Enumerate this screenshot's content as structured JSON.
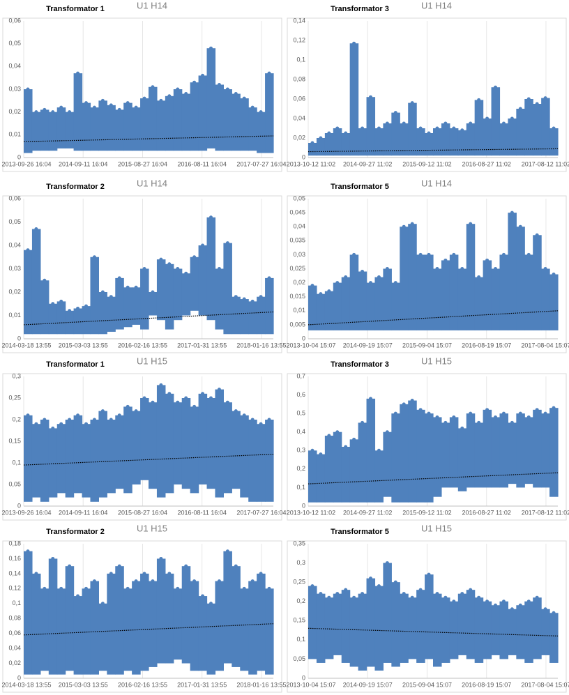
{
  "chart_data": [
    {
      "type": "band",
      "title": "Transformator 1",
      "subtitle": "U1 H14",
      "color": "#4f81bd",
      "ylim": [
        0,
        0.06
      ],
      "yticks": [
        0,
        {
          "value": 0.01,
          "label": "0,01"
        },
        {
          "value": 0.02,
          "label": "0,02"
        },
        {
          "value": 0.03,
          "label": "0,03"
        },
        {
          "value": 0.04,
          "label": "0,04"
        },
        {
          "value": 0.05,
          "label": "0,05"
        },
        {
          "value": 0.06,
          "label": "0,06"
        }
      ],
      "xticks": [
        "2013-09-26 16:04",
        "2014-09-11 16:04",
        "2015-08-27 16:04",
        "2016-08-11 16:04",
        "2017-07-27 16:04"
      ],
      "upper": [
        0.03,
        0.02,
        0.021,
        0.02,
        0.022,
        0.02,
        0.037,
        0.024,
        0.022,
        0.025,
        0.023,
        0.021,
        0.024,
        0.022,
        0.026,
        0.031,
        0.025,
        0.027,
        0.03,
        0.028,
        0.033,
        0.036,
        0.048,
        0.032,
        0.03,
        0.028,
        0.026,
        0.022,
        0.02,
        0.037
      ],
      "lower": [
        0.002,
        0.003,
        0.003,
        0.003,
        0.004,
        0.004,
        0.003,
        0.003,
        0.003,
        0.003,
        0.003,
        0.003,
        0.003,
        0.003,
        0.003,
        0.003,
        0.003,
        0.003,
        0.003,
        0.003,
        0.003,
        0.003,
        0.004,
        0.003,
        0.003,
        0.003,
        0.003,
        0.003,
        0.002,
        0.002
      ],
      "trend": [
        0.007,
        0.0095
      ]
    },
    {
      "type": "band",
      "title": "Transformator 3",
      "subtitle": "U1 H14",
      "color": "#4f81bd",
      "ylim": [
        0,
        0.14
      ],
      "yticks": [
        0,
        {
          "value": 0.02,
          "label": "0,02"
        },
        {
          "value": 0.04,
          "label": "0,04"
        },
        {
          "value": 0.06,
          "label": "0,06"
        },
        {
          "value": 0.08,
          "label": "0,08"
        },
        {
          "value": 0.1,
          "label": "0,1"
        },
        {
          "value": 0.12,
          "label": "0,12"
        },
        {
          "value": 0.14,
          "label": "0,14"
        }
      ],
      "xticks": [
        "2013-10-12 11:02",
        "2014-09-27 11:02",
        "2015-09-12 11:02",
        "2016-08-27 11:02",
        "2017-08-12 11:02"
      ],
      "upper": [
        0.015,
        0.02,
        0.025,
        0.03,
        0.025,
        0.117,
        0.03,
        0.062,
        0.03,
        0.035,
        0.046,
        0.035,
        0.056,
        0.03,
        0.025,
        0.03,
        0.035,
        0.03,
        0.028,
        0.035,
        0.059,
        0.04,
        0.072,
        0.035,
        0.04,
        0.05,
        0.06,
        0.055,
        0.061,
        0.03
      ],
      "lower": [
        0.002,
        0.002,
        0.002,
        0.002,
        0.002,
        0.002,
        0.002,
        0.002,
        0.002,
        0.002,
        0.002,
        0.002,
        0.002,
        0.002,
        0.002,
        0.002,
        0.002,
        0.002,
        0.002,
        0.002,
        0.002,
        0.002,
        0.002,
        0.002,
        0.002,
        0.002,
        0.002,
        0.002,
        0.002,
        0.002
      ],
      "trend": [
        0.006,
        0.009
      ]
    },
    {
      "type": "band",
      "title": "Transformator 2",
      "subtitle": "U1 H14",
      "color": "#4f81bd",
      "ylim": [
        0,
        0.06
      ],
      "yticks": [
        0,
        {
          "value": 0.01,
          "label": "0,01"
        },
        {
          "value": 0.02,
          "label": "0,02"
        },
        {
          "value": 0.03,
          "label": "0,03"
        },
        {
          "value": 0.04,
          "label": "0,04"
        },
        {
          "value": 0.05,
          "label": "0,05"
        },
        {
          "value": 0.06,
          "label": "0,06"
        }
      ],
      "xticks": [
        "2014-03-18 13:55",
        "2015-03-03 13:55",
        "2016-02-16 13:55",
        "2017-01-31 13:55",
        "2018-01-16 13:55"
      ],
      "upper": [
        0.038,
        0.047,
        0.025,
        0.015,
        0.016,
        0.012,
        0.013,
        0.014,
        0.035,
        0.02,
        0.018,
        0.026,
        0.022,
        0.022,
        0.03,
        0.02,
        0.034,
        0.032,
        0.03,
        0.028,
        0.035,
        0.04,
        0.052,
        0.03,
        0.041,
        0.018,
        0.017,
        0.016,
        0.018,
        0.026
      ],
      "lower": [
        0.002,
        0.002,
        0.002,
        0.002,
        0.002,
        0.002,
        0.002,
        0.002,
        0.002,
        0.002,
        0.003,
        0.004,
        0.005,
        0.006,
        0.004,
        0.01,
        0.008,
        0.004,
        0.008,
        0.01,
        0.012,
        0.01,
        0.008,
        0.004,
        0.002,
        0.002,
        0.002,
        0.002,
        0.002,
        0.002
      ],
      "trend": [
        0.006,
        0.0115
      ]
    },
    {
      "type": "band",
      "title": "Transformator 5",
      "subtitle": "U1 H14",
      "color": "#4f81bd",
      "ylim": [
        0,
        0.05
      ],
      "yticks": [
        0,
        {
          "value": 0.005,
          "label": "0,005"
        },
        {
          "value": 0.01,
          "label": "0,01"
        },
        {
          "value": 0.015,
          "label": "0,015"
        },
        {
          "value": 0.02,
          "label": "0,02"
        },
        {
          "value": 0.025,
          "label": "0,025"
        },
        {
          "value": 0.03,
          "label": "0,03"
        },
        {
          "value": 0.035,
          "label": "0,035"
        },
        {
          "value": 0.04,
          "label": "0,04"
        },
        {
          "value": 0.045,
          "label": "0,045"
        },
        {
          "value": 0.05,
          "label": "0,05"
        }
      ],
      "xticks": [
        "2013-10-04 15:07",
        "2014-09-19 15:07",
        "2015-09-04 15:07",
        "2016-08-19 15:07",
        "2017-08-04 15:07"
      ],
      "upper": [
        0.019,
        0.016,
        0.017,
        0.02,
        0.022,
        0.03,
        0.024,
        0.02,
        0.022,
        0.025,
        0.02,
        0.04,
        0.041,
        0.03,
        0.03,
        0.025,
        0.028,
        0.03,
        0.025,
        0.041,
        0.022,
        0.028,
        0.025,
        0.03,
        0.045,
        0.04,
        0.03,
        0.037,
        0.025,
        0.023
      ],
      "lower": [
        0.003,
        0.003,
        0.003,
        0.003,
        0.003,
        0.003,
        0.003,
        0.003,
        0.003,
        0.003,
        0.003,
        0.003,
        0.003,
        0.003,
        0.003,
        0.003,
        0.003,
        0.003,
        0.003,
        0.003,
        0.003,
        0.003,
        0.003,
        0.003,
        0.003,
        0.003,
        0.003,
        0.003,
        0.003,
        0.003
      ],
      "trend": [
        0.005,
        0.01
      ]
    },
    {
      "type": "band",
      "title": "Transformator 1",
      "subtitle": "U1 H15",
      "color": "#4f81bd",
      "ylim": [
        0,
        0.3
      ],
      "yticks": [
        0,
        {
          "value": 0.05,
          "label": "0,05"
        },
        {
          "value": 0.1,
          "label": "0,1"
        },
        {
          "value": 0.15,
          "label": "0,15"
        },
        {
          "value": 0.2,
          "label": "0,2"
        },
        {
          "value": 0.25,
          "label": "0,25"
        },
        {
          "value": 0.3,
          "label": "0,3"
        }
      ],
      "xticks": [
        "2013-09-26 16:04",
        "2014-09-11 16:04",
        "2015-08-27 16:04",
        "2016-08-11 16:04",
        "2017-07-27 16:04"
      ],
      "upper": [
        0.21,
        0.19,
        0.2,
        0.18,
        0.19,
        0.2,
        0.21,
        0.19,
        0.2,
        0.22,
        0.2,
        0.21,
        0.23,
        0.22,
        0.25,
        0.24,
        0.28,
        0.26,
        0.24,
        0.25,
        0.23,
        0.26,
        0.25,
        0.27,
        0.24,
        0.22,
        0.21,
        0.2,
        0.19,
        0.2
      ],
      "lower": [
        0.01,
        0.02,
        0.01,
        0.02,
        0.03,
        0.02,
        0.03,
        0.02,
        0.01,
        0.02,
        0.03,
        0.04,
        0.03,
        0.05,
        0.06,
        0.04,
        0.02,
        0.03,
        0.05,
        0.04,
        0.03,
        0.05,
        0.04,
        0.02,
        0.03,
        0.04,
        0.02,
        0.01,
        0.01,
        0.01
      ],
      "trend": [
        0.095,
        0.12
      ]
    },
    {
      "type": "band",
      "title": "Transformator 3",
      "subtitle": "U1 H15",
      "color": "#4f81bd",
      "ylim": [
        0,
        0.7
      ],
      "yticks": [
        0,
        {
          "value": 0.1,
          "label": "0,1"
        },
        {
          "value": 0.2,
          "label": "0,2"
        },
        {
          "value": 0.3,
          "label": "0,3"
        },
        {
          "value": 0.4,
          "label": "0,4"
        },
        {
          "value": 0.5,
          "label": "0,5"
        },
        {
          "value": 0.6,
          "label": "0,6"
        },
        {
          "value": 0.7,
          "label": "0,7"
        }
      ],
      "xticks": [
        "2013-10-12 11:02",
        "2014-09-27 11:02",
        "2015-09-12 11:02",
        "2016-08-27 11:02",
        "2017-08-12 11:02"
      ],
      "upper": [
        0.3,
        0.28,
        0.38,
        0.4,
        0.32,
        0.36,
        0.45,
        0.58,
        0.3,
        0.4,
        0.5,
        0.55,
        0.57,
        0.52,
        0.5,
        0.48,
        0.45,
        0.48,
        0.42,
        0.5,
        0.45,
        0.52,
        0.48,
        0.5,
        0.45,
        0.5,
        0.48,
        0.52,
        0.5,
        0.53
      ],
      "lower": [
        0.02,
        0.02,
        0.02,
        0.02,
        0.02,
        0.02,
        0.02,
        0.02,
        0.02,
        0.05,
        0.02,
        0.02,
        0.02,
        0.02,
        0.02,
        0.05,
        0.1,
        0.1,
        0.08,
        0.1,
        0.1,
        0.1,
        0.1,
        0.1,
        0.12,
        0.1,
        0.12,
        0.1,
        0.1,
        0.05
      ],
      "trend": [
        0.12,
        0.18
      ]
    },
    {
      "type": "band",
      "title": "Transformator 2",
      "subtitle": "U1 H15",
      "color": "#4f81bd",
      "ylim": [
        0,
        0.18
      ],
      "yticks": [
        0,
        {
          "value": 0.02,
          "label": "0,02"
        },
        {
          "value": 0.04,
          "label": "0,04"
        },
        {
          "value": 0.06,
          "label": "0,06"
        },
        {
          "value": 0.08,
          "label": "0,08"
        },
        {
          "value": 0.1,
          "label": "0,1"
        },
        {
          "value": 0.12,
          "label": "0,12"
        },
        {
          "value": 0.14,
          "label": "0,14"
        },
        {
          "value": 0.16,
          "label": "0,16"
        },
        {
          "value": 0.18,
          "label": "0,18"
        }
      ],
      "xticks": [
        "2014-03-18 13:55",
        "2015-03-03 13:55",
        "2016-02-16 13:55",
        "2017-01-31 13:55",
        "2018-01-16 13:55"
      ],
      "upper": [
        0.17,
        0.14,
        0.12,
        0.16,
        0.12,
        0.15,
        0.11,
        0.12,
        0.13,
        0.1,
        0.14,
        0.15,
        0.12,
        0.13,
        0.14,
        0.13,
        0.16,
        0.14,
        0.12,
        0.15,
        0.13,
        0.11,
        0.1,
        0.13,
        0.17,
        0.15,
        0.12,
        0.13,
        0.14,
        0.12
      ],
      "lower": [
        0.005,
        0.005,
        0.01,
        0.005,
        0.005,
        0.01,
        0.005,
        0.005,
        0.005,
        0.01,
        0.005,
        0.005,
        0.01,
        0.005,
        0.01,
        0.015,
        0.02,
        0.02,
        0.025,
        0.02,
        0.01,
        0.01,
        0.005,
        0.01,
        0.02,
        0.015,
        0.01,
        0.005,
        0.01,
        0.005
      ],
      "trend": [
        0.058,
        0.073
      ]
    },
    {
      "type": "band",
      "title": "Transformator 5",
      "subtitle": "U1 H15",
      "color": "#4f81bd",
      "ylim": [
        0,
        0.35
      ],
      "yticks": [
        0,
        {
          "value": 0.05,
          "label": "0,05"
        },
        {
          "value": 0.1,
          "label": "0,1"
        },
        {
          "value": 0.15,
          "label": "0,15"
        },
        {
          "value": 0.2,
          "label": "0,2"
        },
        {
          "value": 0.25,
          "label": "0,25"
        },
        {
          "value": 0.3,
          "label": "0,3"
        },
        {
          "value": 0.35,
          "label": "0,35"
        }
      ],
      "xticks": [
        "2013-10-04 15:07",
        "2014-09-19 15:07",
        "2015-09-04 15:07",
        "2016-08-19 15:07",
        "2017-08-04 15:07"
      ],
      "upper": [
        0.24,
        0.22,
        0.21,
        0.22,
        0.23,
        0.21,
        0.22,
        0.26,
        0.24,
        0.3,
        0.25,
        0.22,
        0.21,
        0.23,
        0.27,
        0.22,
        0.21,
        0.2,
        0.22,
        0.23,
        0.21,
        0.2,
        0.19,
        0.2,
        0.18,
        0.19,
        0.2,
        0.21,
        0.18,
        0.17
      ],
      "lower": [
        0.05,
        0.04,
        0.05,
        0.06,
        0.04,
        0.03,
        0.02,
        0.03,
        0.02,
        0.04,
        0.03,
        0.04,
        0.05,
        0.04,
        0.05,
        0.03,
        0.04,
        0.05,
        0.06,
        0.05,
        0.04,
        0.05,
        0.06,
        0.05,
        0.06,
        0.05,
        0.04,
        0.05,
        0.06,
        0.04
      ],
      "trend": [
        0.13,
        0.11
      ]
    }
  ]
}
